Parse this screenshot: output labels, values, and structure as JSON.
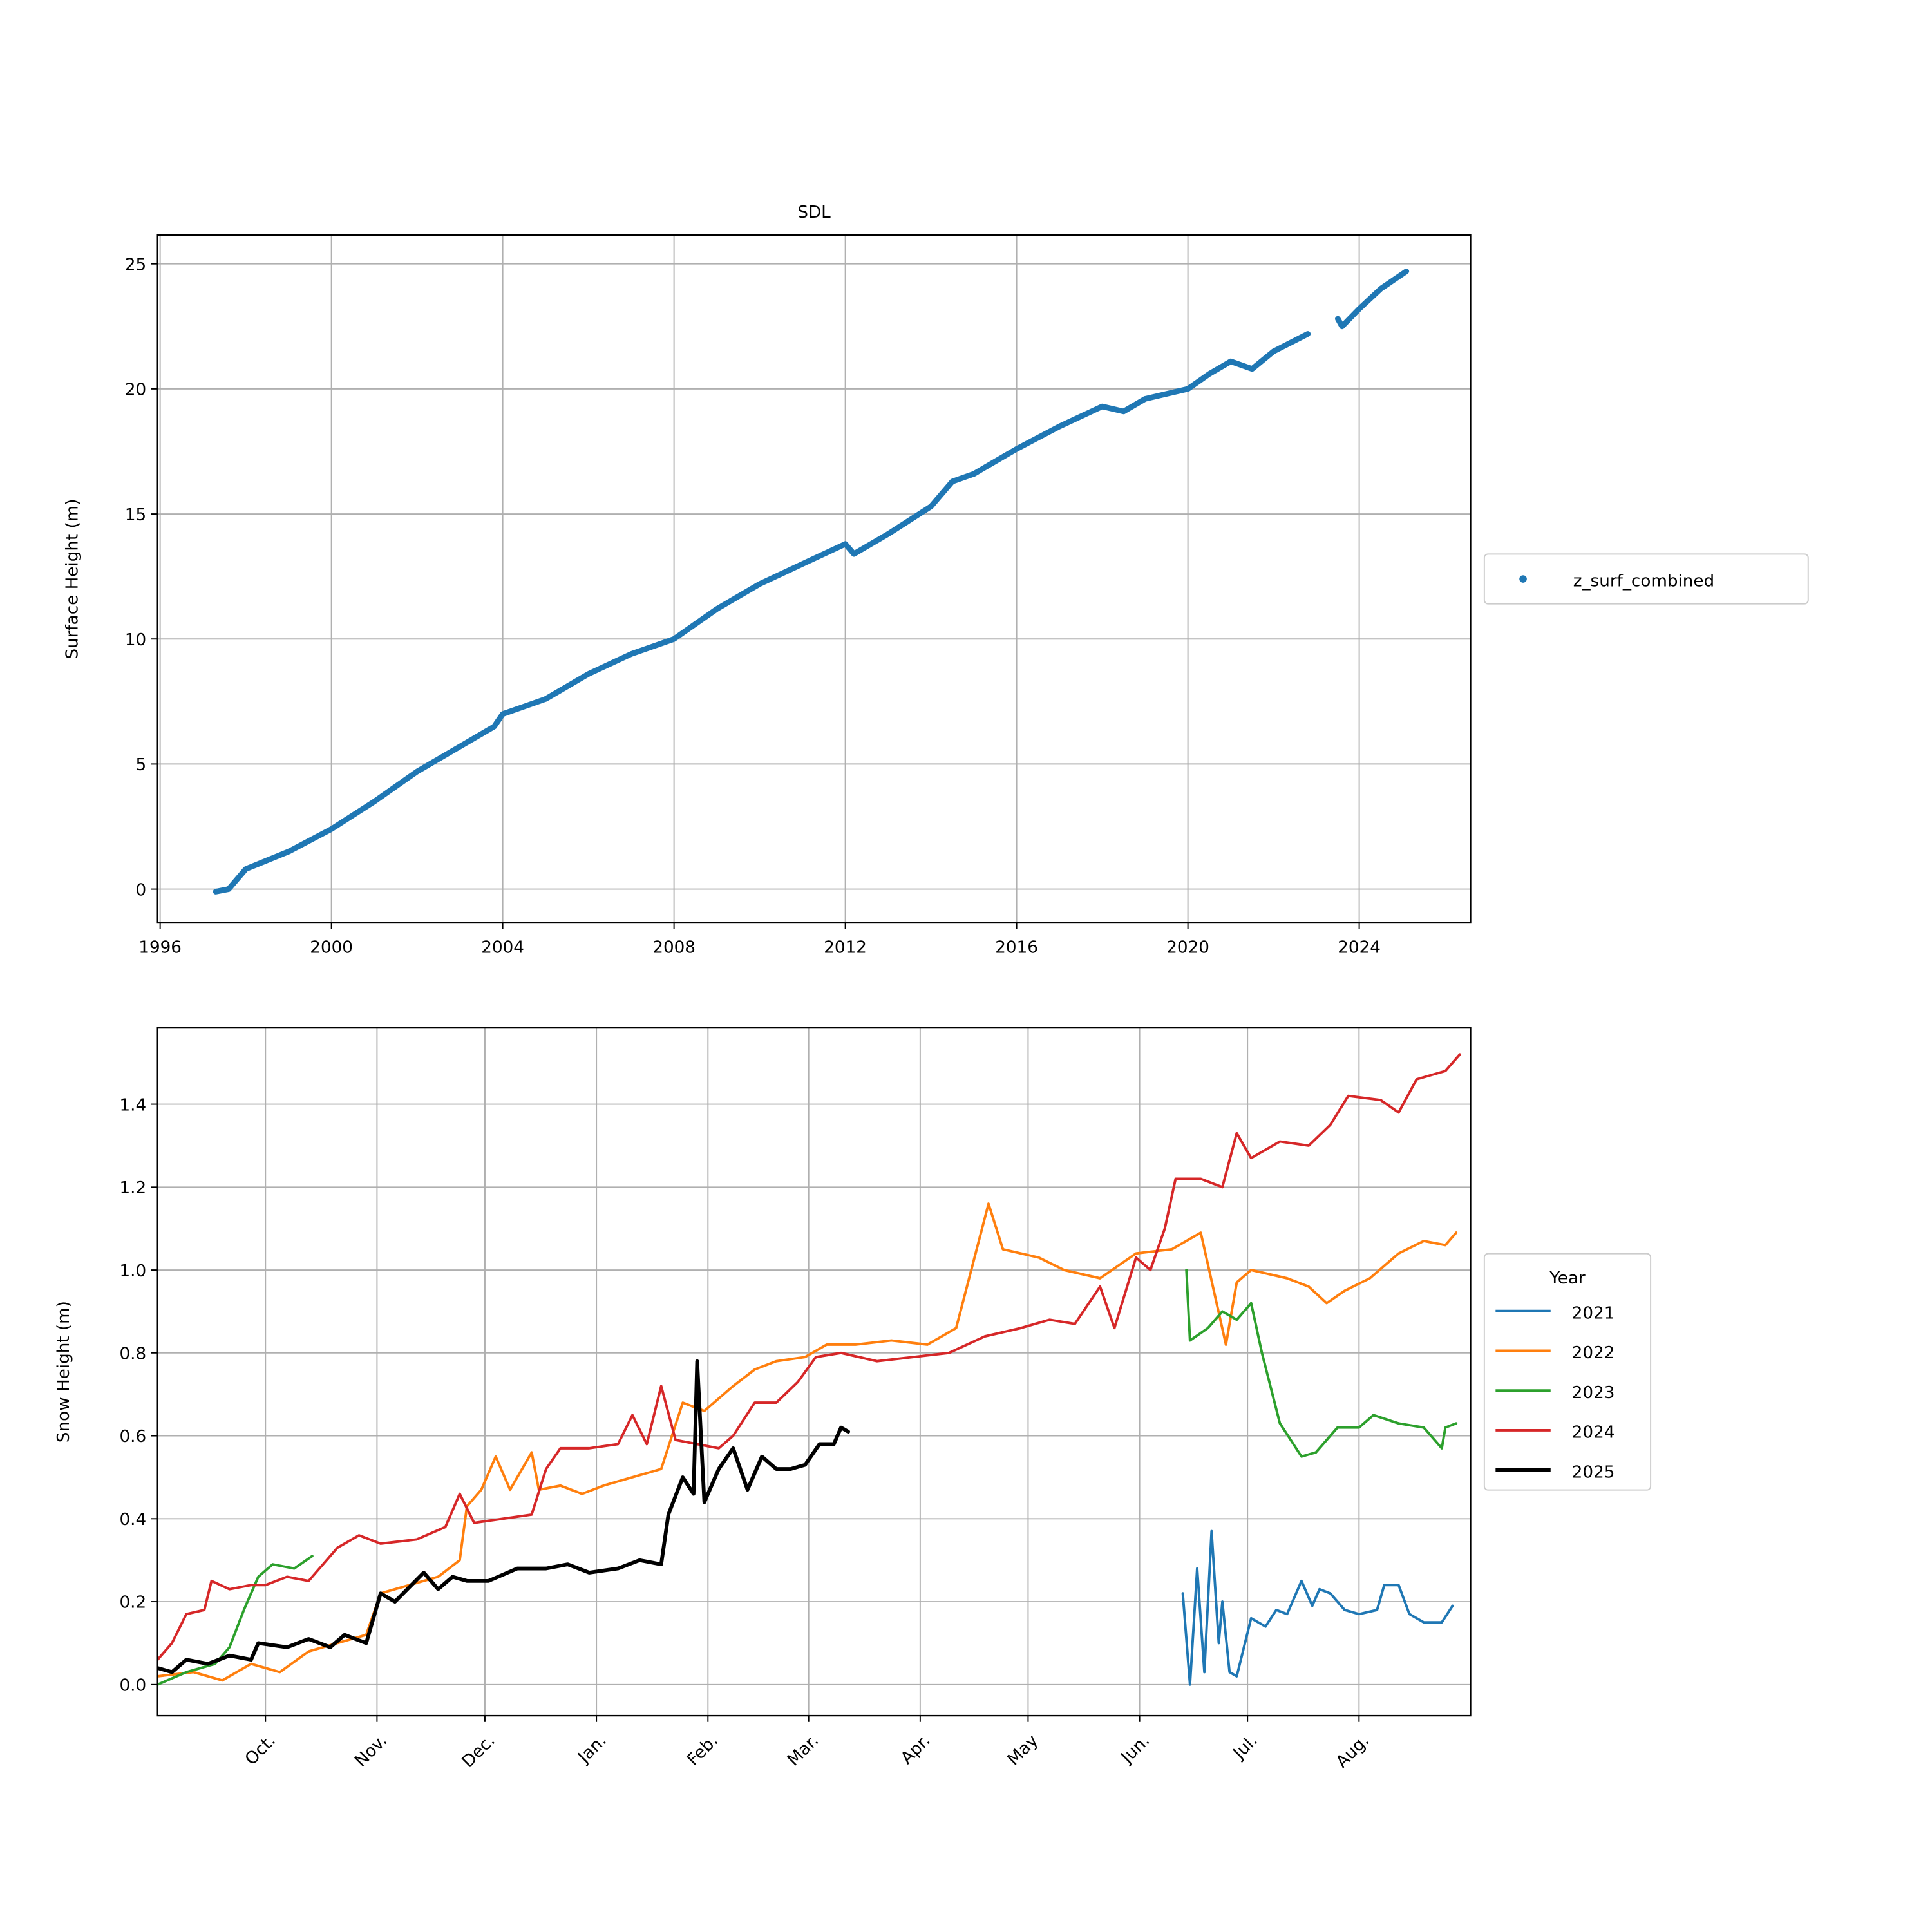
{
  "chart_data": [
    {
      "type": "line",
      "marker": "dot",
      "title": "SDL",
      "y_label": "Surface Height (m)",
      "legend": "outside right",
      "grid": true,
      "xlim": [
        1995.94,
        2026.6
      ],
      "xticks": [
        1996,
        2000,
        2004,
        2008,
        2012,
        2016,
        2020,
        2024
      ],
      "ylim": [
        -1.35,
        26.15
      ],
      "yticks": [
        0,
        5,
        10,
        15,
        20,
        25
      ],
      "series": [
        {
          "name": "z_surf_combined",
          "color": "#1f77b4",
          "x": [
            1997.3,
            1997.6,
            1998,
            1999,
            2000,
            2001,
            2002,
            2003,
            2003.8,
            2004,
            2005,
            2006,
            2007,
            2008,
            2009,
            2010,
            2011,
            2012,
            2012.2,
            2013,
            2014,
            2014.5,
            2015,
            2016,
            2017,
            2018,
            2018.5,
            2019,
            2020,
            2020.5,
            2021,
            2021.5,
            2022,
            2022.8,
            2023.1,
            2023.5,
            2023.6,
            2024,
            2024.5,
            2025.1
          ],
          "values": [
            -0.1,
            0.0,
            0.8,
            1.5,
            2.4,
            3.5,
            4.7,
            5.7,
            6.5,
            7.0,
            7.6,
            8.6,
            9.4,
            10.0,
            11.2,
            12.2,
            13.0,
            13.8,
            13.4,
            14.2,
            15.3,
            16.3,
            16.6,
            17.6,
            18.5,
            19.3,
            19.1,
            19.6,
            20.0,
            20.6,
            21.1,
            20.8,
            21.5,
            22.2,
            null,
            22.8,
            22.5,
            23.2,
            24.0,
            24.7
          ]
        }
      ]
    },
    {
      "type": "line",
      "y_label": "Snow Height (m)",
      "legend": "outside right",
      "legend_title": "Year",
      "grid": true,
      "xlim": [
        0,
        365
      ],
      "xticks": [
        {
          "value": 30,
          "label": "Oct."
        },
        {
          "value": 61,
          "label": "Nov."
        },
        {
          "value": 91,
          "label": "Dec."
        },
        {
          "value": 122,
          "label": "Jan."
        },
        {
          "value": 153,
          "label": "Feb."
        },
        {
          "value": 181,
          "label": "Mar."
        },
        {
          "value": 212,
          "label": "Apr."
        },
        {
          "value": 242,
          "label": "May"
        },
        {
          "value": 273,
          "label": "Jun."
        },
        {
          "value": 303,
          "label": "Jul."
        },
        {
          "value": 334,
          "label": "Aug."
        }
      ],
      "ylim": [
        -0.075,
        1.584
      ],
      "yticks": [
        {
          "value": 0,
          "label": "0.0"
        },
        0.2,
        0.4,
        0.6,
        0.8,
        {
          "value": 1,
          "label": "1.0"
        },
        1.2,
        1.4
      ],
      "series": [
        {
          "name": "2021",
          "color": "#1f77b4",
          "linewidth": 2,
          "x": [
            285,
            287,
            289,
            291,
            293,
            295,
            296,
            298,
            300,
            304,
            308,
            311,
            314,
            318,
            321,
            323,
            326,
            330,
            334,
            339,
            341,
            345,
            348,
            352,
            357,
            360
          ],
          "values": [
            0.22,
            0.0,
            0.28,
            0.03,
            0.37,
            0.1,
            0.2,
            0.03,
            0.02,
            0.16,
            0.14,
            0.18,
            0.17,
            0.25,
            0.19,
            0.23,
            0.22,
            0.18,
            0.17,
            0.18,
            0.24,
            0.24,
            0.17,
            0.15,
            0.15,
            0.19
          ]
        },
        {
          "name": "2022",
          "color": "#ff7f0e",
          "linewidth": 2,
          "x": [
            0,
            10,
            18,
            26,
            34,
            42,
            50,
            58,
            62,
            70,
            78,
            84,
            86,
            90,
            94,
            98,
            104,
            106,
            112,
            118,
            124,
            132,
            140,
            146,
            152,
            160,
            166,
            172,
            180,
            186,
            194,
            204,
            214,
            222,
            231,
            235,
            245,
            252,
            262,
            272,
            282,
            290,
            297,
            300,
            304,
            314,
            320,
            325,
            330,
            337,
            345,
            352,
            358,
            361
          ],
          "values": [
            0.02,
            0.03,
            0.01,
            0.05,
            0.03,
            0.08,
            0.1,
            0.12,
            0.22,
            0.24,
            0.26,
            0.3,
            0.43,
            0.47,
            0.55,
            0.47,
            0.56,
            0.47,
            0.48,
            0.46,
            0.48,
            0.5,
            0.52,
            0.68,
            0.66,
            0.72,
            0.76,
            0.78,
            0.79,
            0.82,
            0.82,
            0.83,
            0.82,
            0.86,
            1.16,
            1.05,
            1.03,
            1.0,
            0.98,
            1.04,
            1.05,
            1.09,
            0.82,
            0.97,
            1.0,
            0.98,
            0.96,
            0.92,
            0.95,
            0.98,
            1.04,
            1.07,
            1.06,
            1.09
          ]
        },
        {
          "name": "2023",
          "color": "#2ca02c",
          "linewidth": 2,
          "x": [
            0,
            8,
            16,
            20,
            24,
            28,
            32,
            38,
            43,
            160,
            286,
            287,
            292,
            296,
            300,
            304,
            307,
            312,
            318,
            322,
            328,
            334,
            338,
            345,
            352,
            357,
            358,
            361
          ],
          "values": [
            0.0,
            0.03,
            0.05,
            0.09,
            0.18,
            0.26,
            0.29,
            0.28,
            0.31,
            null,
            1.0,
            0.83,
            0.86,
            0.9,
            0.88,
            0.92,
            0.8,
            0.63,
            0.55,
            0.56,
            0.62,
            0.62,
            0.65,
            0.63,
            0.62,
            0.57,
            0.62,
            0.63
          ]
        },
        {
          "name": "2024",
          "color": "#d62728",
          "linewidth": 2,
          "x": [
            0,
            4,
            8,
            13,
            15,
            20,
            26,
            30,
            36,
            42,
            46,
            50,
            56,
            62,
            72,
            80,
            84,
            88,
            96,
            104,
            108,
            112,
            120,
            128,
            132,
            136,
            140,
            144,
            150,
            156,
            160,
            166,
            172,
            178,
            183,
            190,
            200,
            210,
            220,
            230,
            240,
            248,
            255,
            262,
            266,
            272,
            276,
            280,
            283,
            290,
            296,
            300,
            304,
            312,
            320,
            326,
            331,
            340,
            345,
            350,
            358,
            362
          ],
          "values": [
            0.06,
            0.1,
            0.17,
            0.18,
            0.25,
            0.23,
            0.24,
            0.24,
            0.26,
            0.25,
            0.29,
            0.33,
            0.36,
            0.34,
            0.35,
            0.38,
            0.46,
            0.39,
            0.4,
            0.41,
            0.52,
            0.57,
            0.57,
            0.58,
            0.65,
            0.58,
            0.72,
            0.59,
            0.58,
            0.57,
            0.6,
            0.68,
            0.68,
            0.73,
            0.79,
            0.8,
            0.78,
            0.79,
            0.8,
            0.84,
            0.86,
            0.88,
            0.87,
            0.96,
            0.86,
            1.03,
            1.0,
            1.1,
            1.22,
            1.22,
            1.2,
            1.33,
            1.27,
            1.31,
            1.3,
            1.35,
            1.42,
            1.41,
            1.38,
            1.46,
            1.48,
            1.52
          ]
        },
        {
          "name": "2025",
          "color": "#000000",
          "linewidth": 3,
          "x": [
            0,
            4,
            8,
            14,
            20,
            26,
            28,
            36,
            42,
            48,
            52,
            58,
            62,
            66,
            74,
            78,
            82,
            86,
            92,
            100,
            108,
            114,
            120,
            128,
            134,
            140,
            142,
            146,
            149,
            150,
            152,
            156,
            160,
            164,
            168,
            172,
            176,
            180,
            184,
            188,
            190,
            192
          ],
          "values": [
            0.04,
            0.03,
            0.06,
            0.05,
            0.07,
            0.06,
            0.1,
            0.09,
            0.11,
            0.09,
            0.12,
            0.1,
            0.22,
            0.2,
            0.27,
            0.23,
            0.26,
            0.25,
            0.25,
            0.28,
            0.28,
            0.29,
            0.27,
            0.28,
            0.3,
            0.29,
            0.41,
            0.5,
            0.46,
            0.78,
            0.44,
            0.52,
            0.57,
            0.47,
            0.55,
            0.52,
            0.52,
            0.53,
            0.58,
            0.58,
            0.62,
            0.61
          ]
        }
      ]
    }
  ]
}
